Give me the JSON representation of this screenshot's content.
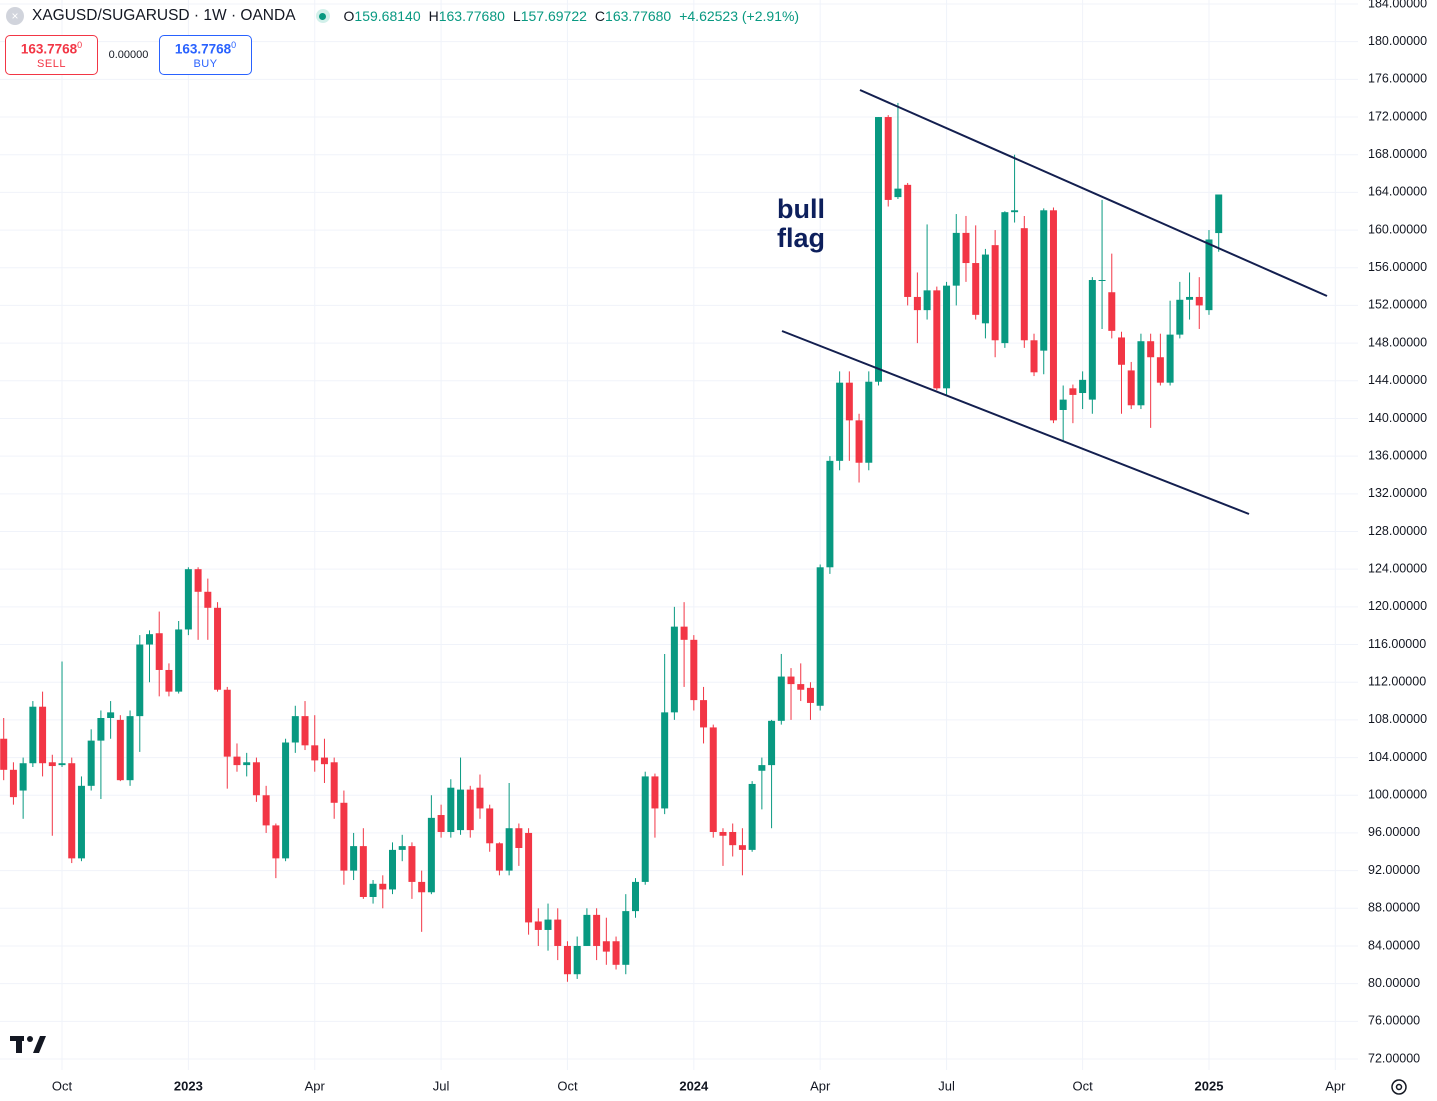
{
  "header": {
    "symbol": "XAGUSD/SUGARUSD · 1W · OANDA",
    "ohlc": [
      {
        "key": "O",
        "value": "159.68140"
      },
      {
        "key": "H",
        "value": "163.77680"
      },
      {
        "key": "L",
        "value": "157.69722"
      },
      {
        "key": "C",
        "value": "163.77680"
      }
    ],
    "change": "+4.62523 (+2.91%)"
  },
  "trade": {
    "sell_price": "163.7768",
    "sell_price_sup": "0",
    "sell": "SELL",
    "spread": "0.00000",
    "buy_price": "163.7768",
    "buy_price_sup": "0",
    "buy": "BUY"
  },
  "annotation": [
    "bull",
    "flag"
  ],
  "chart_data": {
    "type": "candlestick",
    "up_color": "#089981",
    "down_color": "#f23645",
    "grid": true,
    "categories": [
      null,
      null,
      null,
      null,
      null,
      null,
      "Oct",
      null,
      null,
      null,
      null,
      null,
      null,
      null,
      null,
      null,
      null,
      null,
      null,
      "2023",
      null,
      null,
      null,
      null,
      null,
      null,
      null,
      null,
      null,
      null,
      null,
      null,
      "Apr",
      null,
      null,
      null,
      null,
      null,
      null,
      null,
      null,
      null,
      null,
      null,
      null,
      "Jul",
      null,
      null,
      null,
      null,
      null,
      null,
      null,
      null,
      null,
      null,
      null,
      null,
      "Oct",
      null,
      null,
      null,
      null,
      null,
      null,
      null,
      null,
      null,
      null,
      null,
      null,
      "2024",
      null,
      null,
      null,
      null,
      null,
      null,
      null,
      null,
      null,
      null,
      null,
      null,
      "Apr",
      null,
      null,
      null,
      null,
      null,
      null,
      null,
      null,
      null,
      null,
      null,
      null,
      "Jul",
      null,
      null,
      null,
      null,
      null,
      null,
      null,
      null,
      null,
      null,
      null,
      null,
      null,
      "Oct",
      null,
      null,
      null,
      null,
      null,
      null,
      null,
      null,
      null,
      null,
      null,
      null,
      "2025",
      null,
      null,
      null,
      null,
      null,
      null,
      null,
      null,
      null,
      null,
      null,
      null,
      "Apr",
      null
    ],
    "open": [
      106,
      102.7,
      100.5,
      103.4,
      109.4,
      103.5,
      103.2,
      103.4,
      93.3,
      101,
      105.8,
      108.2,
      108,
      101.6,
      108.4,
      116,
      117.2,
      113.3,
      111,
      117.6,
      124,
      121.6,
      119.9,
      111.2,
      104.1,
      103.2,
      103.5,
      100,
      96.8,
      93.3,
      105.6,
      108.4,
      105.3,
      104,
      103.5,
      99.2,
      92,
      94.6,
      89.2,
      90.6,
      90,
      94.2,
      94.6,
      90.8,
      89.7,
      97.9,
      96.1,
      96.3,
      100.6,
      100.8,
      98.6,
      94.9,
      92,
      96.5,
      96,
      86.6,
      85.7,
      86.8,
      84,
      81,
      84,
      87.3,
      84.5,
      84.5,
      82,
      87.7,
      90.8,
      102,
      98.6,
      108.8,
      117.9,
      116.5,
      110.1,
      107.2,
      96.1,
      96.1,
      94.7,
      94.2,
      102.6,
      103.2,
      107.9,
      112.6,
      111.8,
      111.4,
      109.5,
      124.2,
      135.5,
      143.8,
      139.8,
      135.3,
      143.9,
      172,
      163.5,
      164.8,
      152.9,
      151.5,
      153.6,
      143.2,
      154.1,
      159.7,
      156.5,
      150.1,
      158.4,
      148,
      161.9,
      160.2,
      148.3,
      147.2,
      162.1,
      140.9,
      143.2,
      142.7,
      142,
      154.6,
      153.4,
      148.6,
      145.1,
      141.4,
      148.2,
      146.5,
      143.8,
      148.9,
      152.6,
      152.9,
      151.5,
      159.6814,
      null,
      null,
      null,
      null,
      null,
      null,
      null,
      null,
      null,
      null,
      null,
      null,
      null
    ],
    "high": [
      108.2,
      103.5,
      104,
      110,
      111,
      104.3,
      114.2,
      104,
      102,
      107,
      109,
      110,
      108.5,
      109,
      117,
      117.5,
      119.5,
      114,
      118.5,
      124.2,
      124.2,
      123,
      120.5,
      111.5,
      105.5,
      104.5,
      104,
      101,
      97,
      106,
      109.5,
      110,
      108.5,
      106,
      104,
      100.5,
      96,
      96.5,
      91,
      91.5,
      95,
      95.8,
      95,
      92,
      100,
      99,
      101.7,
      104,
      101,
      102.2,
      99,
      95,
      101.3,
      97,
      96.5,
      88,
      88.5,
      88,
      84.5,
      85,
      88,
      88,
      87,
      85,
      89.5,
      91.2,
      102.5,
      102.3,
      115,
      120,
      120.5,
      117,
      111.5,
      107.5,
      96.5,
      97,
      96.5,
      101.5,
      104,
      108,
      115,
      113.5,
      114,
      112,
      124.5,
      136,
      145,
      145,
      140.5,
      145,
      172,
      172.2,
      173.5,
      165,
      155.5,
      160.6,
      154,
      154.5,
      161.7,
      161.5,
      160.5,
      158,
      160,
      162,
      168,
      161.5,
      149,
      162.3,
      162.4,
      143.5,
      143.6,
      145,
      155,
      163.2,
      157.5,
      149.2,
      146,
      149,
      149,
      149,
      152.5,
      154.5,
      155.5,
      155,
      160,
      163.7768,
      null,
      null,
      null,
      null,
      null,
      null,
      null,
      null,
      null,
      null,
      null,
      null,
      null
    ],
    "low": [
      101.6,
      99,
      97.5,
      103,
      102,
      95.7,
      103,
      92.8,
      93,
      100.5,
      99.6,
      106,
      101.5,
      101,
      104.6,
      112,
      110.5,
      110.5,
      110.8,
      117,
      116.5,
      116.5,
      111,
      100.7,
      102.5,
      102,
      99.3,
      96,
      91.2,
      93,
      104.5,
      104.8,
      102.5,
      101.3,
      97.5,
      90.5,
      91,
      89,
      88.5,
      88,
      89.5,
      93,
      89,
      85.5,
      89.5,
      95.5,
      95.5,
      95.8,
      95.5,
      97.5,
      94,
      91.5,
      91.5,
      92.5,
      85.2,
      84,
      83.5,
      82.5,
      80.2,
      80.5,
      84,
      82.5,
      82,
      81.5,
      81,
      87,
      90.5,
      95.5,
      98,
      108,
      111.5,
      109,
      105.5,
      95.5,
      92.5,
      93.5,
      91.5,
      94,
      98.5,
      96.5,
      107.5,
      108,
      110,
      108,
      109,
      123.5,
      134.5,
      135.5,
      133.2,
      134.5,
      143.5,
      162.5,
      163.3,
      152,
      148,
      150.5,
      143,
      142.5,
      152,
      154.5,
      150.5,
      148.5,
      146.5,
      147.5,
      160.8,
      147.5,
      144.5,
      144.7,
      139.5,
      137.5,
      139.5,
      141,
      140.5,
      149.5,
      148.5,
      140.5,
      141,
      141,
      139,
      143.5,
      143.5,
      148.5,
      150.5,
      149.5,
      151,
      157.69722,
      null,
      null,
      null,
      null,
      null,
      null,
      null,
      null,
      null,
      null,
      null,
      null,
      null
    ],
    "close": [
      102.7,
      99.8,
      103.4,
      109.4,
      103.4,
      103.1,
      103.4,
      93.3,
      101,
      105.8,
      108.2,
      108.8,
      101.6,
      108.4,
      116,
      117.1,
      113.3,
      111,
      117.6,
      124,
      121.6,
      119.9,
      111.2,
      104.1,
      103.2,
      103.5,
      100,
      96.8,
      93.3,
      105.6,
      108.4,
      105.3,
      103.7,
      103.3,
      99.2,
      92,
      94.6,
      89.2,
      90.6,
      90,
      94.2,
      94.6,
      90.8,
      89.7,
      97.6,
      96.1,
      100.8,
      100.6,
      96.3,
      98.6,
      94.9,
      92,
      96.5,
      94.4,
      86.5,
      85.7,
      86.8,
      84,
      81,
      84,
      87.3,
      84,
      83.4,
      82,
      87.7,
      90.8,
      102,
      98.6,
      108.8,
      117.9,
      116.5,
      110.1,
      107.2,
      96.1,
      95.7,
      94.7,
      94.2,
      101.2,
      103.2,
      107.9,
      112.6,
      111.8,
      111.2,
      109.8,
      124.2,
      135.5,
      143.8,
      139.8,
      135.3,
      143.9,
      172,
      163.2,
      164.4,
      152.9,
      151.5,
      153.6,
      143.2,
      154.1,
      159.7,
      156.5,
      151,
      157.4,
      148.3,
      161.9,
      162.1,
      148.3,
      144.9,
      162.1,
      139.8,
      142,
      142.5,
      144.1,
      154.7,
      154.7,
      149.3,
      145.7,
      141.4,
      148.2,
      146.5,
      143.8,
      148.9,
      152.6,
      152.9,
      152,
      159,
      163.7768,
      null,
      null,
      null,
      null,
      null,
      null,
      null,
      null,
      null,
      null,
      null,
      null,
      null
    ],
    "ylim": [
      72,
      184
    ],
    "yticks": [
      {
        "value": 72,
        "label": "72.00000"
      },
      {
        "value": 76,
        "label": "76.00000"
      },
      {
        "value": 80,
        "label": "80.00000"
      },
      {
        "value": 84,
        "label": "84.00000"
      },
      {
        "value": 88,
        "label": "88.00000"
      },
      {
        "value": 92,
        "label": "92.00000"
      },
      {
        "value": 96,
        "label": "96.00000"
      },
      {
        "value": 100,
        "label": "100.00000"
      },
      {
        "value": 104,
        "label": "104.00000"
      },
      {
        "value": 108,
        "label": "108.00000"
      },
      {
        "value": 112,
        "label": "112.00000"
      },
      {
        "value": 116,
        "label": "116.00000"
      },
      {
        "value": 120,
        "label": "120.00000"
      },
      {
        "value": 124,
        "label": "124.00000"
      },
      {
        "value": 128,
        "label": "128.00000"
      },
      {
        "value": 132,
        "label": "132.00000"
      },
      {
        "value": 136,
        "label": "136.00000"
      },
      {
        "value": 140,
        "label": "140.00000"
      },
      {
        "value": 144,
        "label": "144.00000"
      },
      {
        "value": 148,
        "label": "148.00000"
      },
      {
        "value": 152,
        "label": "152.00000"
      },
      {
        "value": 156,
        "label": "156.00000"
      },
      {
        "value": 160,
        "label": "160.00000"
      },
      {
        "value": 164,
        "label": "164.00000"
      },
      {
        "value": 168,
        "label": "168.00000"
      },
      {
        "value": 172,
        "label": "172.00000"
      },
      {
        "value": 176,
        "label": "176.00000"
      },
      {
        "value": 180,
        "label": "180.00000"
      },
      {
        "value": 184,
        "label": "184.00000"
      }
    ]
  }
}
